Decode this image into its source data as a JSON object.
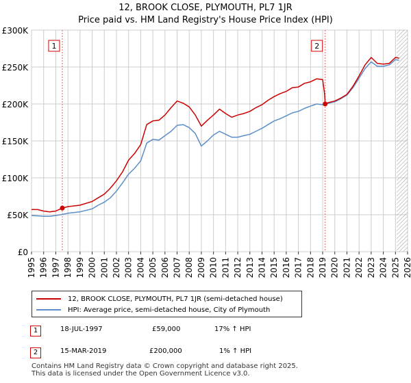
{
  "title_line1": "12, BROOK CLOSE, PLYMOUTH, PL7 1JR",
  "title_line2": "Price paid vs. HM Land Registry's House Price Index (HPI)",
  "chart_data": {
    "type": "line",
    "x_range": [
      1995,
      2026
    ],
    "ylim": [
      0,
      300000
    ],
    "x_ticks": [
      "1995",
      "1996",
      "1997",
      "1998",
      "1999",
      "2000",
      "2001",
      "2002",
      "2003",
      "2004",
      "2005",
      "2006",
      "2007",
      "2008",
      "2009",
      "2010",
      "2011",
      "2012",
      "2013",
      "2014",
      "2015",
      "2016",
      "2017",
      "2018",
      "2019",
      "2020",
      "2021",
      "2022",
      "2023",
      "2024",
      "2025",
      "2026"
    ],
    "y_ticks": [
      {
        "value": 0,
        "label": "£0"
      },
      {
        "value": 50000,
        "label": "£50K"
      },
      {
        "value": 100000,
        "label": "£100K"
      },
      {
        "value": 150000,
        "label": "£150K"
      },
      {
        "value": 200000,
        "label": "£200K"
      },
      {
        "value": 250000,
        "label": "£250K"
      },
      {
        "value": 300000,
        "label": "£300K"
      }
    ],
    "grid": true,
    "hatched_after": 2025.1,
    "series": [
      {
        "name": "12, BROOK CLOSE, PLYMOUTH, PL7 1JR (semi-detached house)",
        "color": "#cc0000",
        "points": [
          [
            1995.0,
            57000
          ],
          [
            1995.5,
            57000
          ],
          [
            1996.0,
            55000
          ],
          [
            1996.5,
            54000
          ],
          [
            1997.0,
            55000
          ],
          [
            1997.54,
            59000
          ],
          [
            1998.0,
            61000
          ],
          [
            1999.0,
            63000
          ],
          [
            2000.0,
            68000
          ],
          [
            2000.5,
            73000
          ],
          [
            2001.0,
            78000
          ],
          [
            2001.5,
            86000
          ],
          [
            2002.0,
            96000
          ],
          [
            2002.5,
            108000
          ],
          [
            2003.0,
            124000
          ],
          [
            2003.5,
            133000
          ],
          [
            2004.0,
            145000
          ],
          [
            2004.5,
            172000
          ],
          [
            2005.0,
            177000
          ],
          [
            2005.5,
            178000
          ],
          [
            2006.0,
            185000
          ],
          [
            2006.5,
            195000
          ],
          [
            2007.0,
            204000
          ],
          [
            2007.5,
            201000
          ],
          [
            2008.0,
            196000
          ],
          [
            2008.5,
            185000
          ],
          [
            2009.0,
            170000
          ],
          [
            2009.5,
            178000
          ],
          [
            2010.0,
            185000
          ],
          [
            2010.5,
            193000
          ],
          [
            2011.0,
            187000
          ],
          [
            2011.5,
            182000
          ],
          [
            2012.0,
            185000
          ],
          [
            2012.5,
            187000
          ],
          [
            2013.0,
            190000
          ],
          [
            2013.5,
            195000
          ],
          [
            2014.0,
            199000
          ],
          [
            2014.5,
            205000
          ],
          [
            2015.0,
            210000
          ],
          [
            2015.5,
            214000
          ],
          [
            2016.0,
            217000
          ],
          [
            2016.5,
            222000
          ],
          [
            2017.0,
            223000
          ],
          [
            2017.5,
            228000
          ],
          [
            2018.0,
            230000
          ],
          [
            2018.5,
            234000
          ],
          [
            2019.0,
            233000
          ],
          [
            2019.15,
            215000
          ],
          [
            2019.21,
            200000
          ],
          [
            2019.5,
            202000
          ],
          [
            2020.0,
            204000
          ],
          [
            2020.5,
            208000
          ],
          [
            2021.0,
            213000
          ],
          [
            2021.5,
            224000
          ],
          [
            2022.0,
            238000
          ],
          [
            2022.5,
            253000
          ],
          [
            2023.0,
            263000
          ],
          [
            2023.5,
            255000
          ],
          [
            2024.0,
            254000
          ],
          [
            2024.5,
            255000
          ],
          [
            2025.0,
            263000
          ],
          [
            2025.3,
            262000
          ]
        ]
      },
      {
        "name": "HPI: Average price, semi-detached house, City of Plymouth",
        "color": "#5b8ec9",
        "points": [
          [
            1995.0,
            49000
          ],
          [
            1995.5,
            48500
          ],
          [
            1996.0,
            48000
          ],
          [
            1996.5,
            48000
          ],
          [
            1997.0,
            49000
          ],
          [
            1997.54,
            50500
          ],
          [
            1998.0,
            52000
          ],
          [
            1999.0,
            54000
          ],
          [
            2000.0,
            58000
          ],
          [
            2000.5,
            63000
          ],
          [
            2001.0,
            67000
          ],
          [
            2001.5,
            73000
          ],
          [
            2002.0,
            82000
          ],
          [
            2002.5,
            93000
          ],
          [
            2003.0,
            105000
          ],
          [
            2003.5,
            113000
          ],
          [
            2004.0,
            123000
          ],
          [
            2004.5,
            147000
          ],
          [
            2005.0,
            152000
          ],
          [
            2005.5,
            151000
          ],
          [
            2006.0,
            157000
          ],
          [
            2006.5,
            163000
          ],
          [
            2007.0,
            171000
          ],
          [
            2007.5,
            172000
          ],
          [
            2008.0,
            168000
          ],
          [
            2008.5,
            160000
          ],
          [
            2009.0,
            143000
          ],
          [
            2009.5,
            150000
          ],
          [
            2010.0,
            158000
          ],
          [
            2010.5,
            163000
          ],
          [
            2011.0,
            159000
          ],
          [
            2011.5,
            155000
          ],
          [
            2012.0,
            155000
          ],
          [
            2012.5,
            157000
          ],
          [
            2013.0,
            159000
          ],
          [
            2013.5,
            163000
          ],
          [
            2014.0,
            167000
          ],
          [
            2014.5,
            172000
          ],
          [
            2015.0,
            177000
          ],
          [
            2015.5,
            180000
          ],
          [
            2016.0,
            184000
          ],
          [
            2016.5,
            188000
          ],
          [
            2017.0,
            190000
          ],
          [
            2017.5,
            194000
          ],
          [
            2018.0,
            197000
          ],
          [
            2018.5,
            200000
          ],
          [
            2019.0,
            199000
          ],
          [
            2019.21,
            200000
          ],
          [
            2019.5,
            201000
          ],
          [
            2020.0,
            203000
          ],
          [
            2020.5,
            207000
          ],
          [
            2021.0,
            212000
          ],
          [
            2021.5,
            222000
          ],
          [
            2022.0,
            235000
          ],
          [
            2022.5,
            248000
          ],
          [
            2023.0,
            257000
          ],
          [
            2023.5,
            251000
          ],
          [
            2024.0,
            251000
          ],
          [
            2024.5,
            253000
          ],
          [
            2025.0,
            260000
          ],
          [
            2025.3,
            259000
          ]
        ]
      }
    ],
    "markers": [
      {
        "label": "1",
        "x": 1997.54,
        "value": 59000
      },
      {
        "label": "2",
        "x": 2019.21,
        "value": 200000
      }
    ]
  },
  "legend": [
    {
      "label": "12, BROOK CLOSE, PLYMOUTH, PL7 1JR (semi-detached house)",
      "color": "#cc0000"
    },
    {
      "label": "HPI: Average price, semi-detached house, City of Plymouth",
      "color": "#5b8ec9"
    }
  ],
  "transactions": [
    {
      "num": "1",
      "date": "18-JUL-1997",
      "price": "£59,000",
      "hpi": "17% ↑ HPI"
    },
    {
      "num": "2",
      "date": "15-MAR-2019",
      "price": "£200,000",
      "hpi": "1% ↑ HPI"
    }
  ],
  "footer_line1": "Contains HM Land Registry data © Crown copyright and database right 2025.",
  "footer_line2": "This data is licensed under the Open Government Licence v3.0."
}
